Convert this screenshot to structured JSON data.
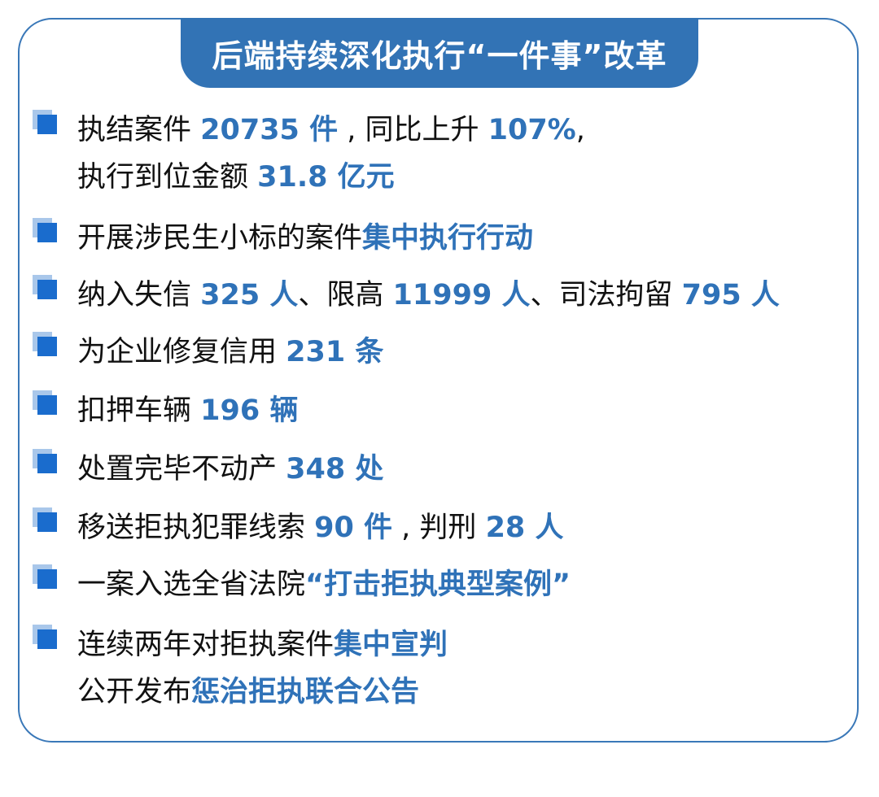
{
  "title": "后端持续深化执行“一件事”改革",
  "colors": {
    "accent": "#2f72b8",
    "bullet": "#1a6ccd",
    "bullet_shadow": "#a9c7ea",
    "border": "#3a78b8"
  },
  "items": [
    {
      "lines": [
        [
          {
            "t": "执结案件 ",
            "b": false
          },
          {
            "t": "20735 件",
            "b": true
          },
          {
            "t": " , 同比上升 ",
            "b": false
          },
          {
            "t": "107%",
            "b": true
          },
          {
            "t": ",",
            "b": false
          }
        ],
        [
          {
            "t": "执行到位金额 ",
            "b": false
          },
          {
            "t": "31.8 亿元",
            "b": true
          }
        ]
      ]
    },
    {
      "lines": [
        [
          {
            "t": "开展涉民生小标的案件",
            "b": false
          },
          {
            "t": "集中执行行动",
            "b": true
          }
        ]
      ]
    },
    {
      "lines": [
        [
          {
            "t": "纳入失信 ",
            "b": false
          },
          {
            "t": "325 人",
            "b": true
          },
          {
            "t": "、限高 ",
            "b": false
          },
          {
            "t": "11999 人",
            "b": true
          },
          {
            "t": "、司法拘留 ",
            "b": false
          },
          {
            "t": "795 人",
            "b": true
          }
        ]
      ]
    },
    {
      "lines": [
        [
          {
            "t": "为企业修复信用 ",
            "b": false
          },
          {
            "t": "231 条",
            "b": true
          }
        ]
      ]
    },
    {
      "lines": [
        [
          {
            "t": "扣押车辆 ",
            "b": false
          },
          {
            "t": "196 辆",
            "b": true
          }
        ]
      ]
    },
    {
      "lines": [
        [
          {
            "t": "处置完毕不动产 ",
            "b": false
          },
          {
            "t": "348 处",
            "b": true
          }
        ]
      ]
    },
    {
      "lines": [
        [
          {
            "t": "移送拒执犯罪线索 ",
            "b": false
          },
          {
            "t": "90 件",
            "b": true
          },
          {
            "t": " , 判刑 ",
            "b": false
          },
          {
            "t": "28 人",
            "b": true
          }
        ]
      ]
    },
    {
      "lines": [
        [
          {
            "t": "一案入选全省法院",
            "b": false
          },
          {
            "t": "“打击拒执典型案例”",
            "b": true
          }
        ]
      ]
    },
    {
      "lines": [
        [
          {
            "t": "连续两年对拒执案件",
            "b": false
          },
          {
            "t": "集中宣判",
            "b": true
          }
        ],
        [
          {
            "t": "公开发布",
            "b": false
          },
          {
            "t": "惩治拒执联合公告",
            "b": true
          }
        ]
      ]
    }
  ]
}
